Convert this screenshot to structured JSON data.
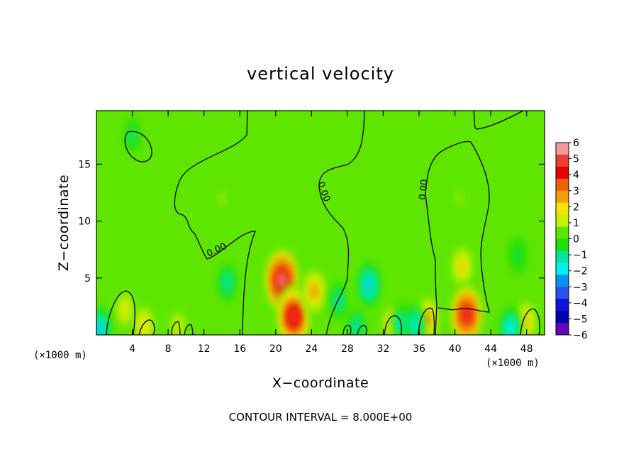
{
  "chart_data": {
    "type": "heatmap",
    "title": "vertical velocity",
    "xlabel": "X−coordinate",
    "ylabel": "Z−coordinate",
    "x_unit": "(×1000 m)",
    "x_ticks": [
      4,
      8,
      12,
      16,
      20,
      24,
      28,
      32,
      36,
      40,
      44,
      48
    ],
    "y_ticks": [
      5,
      10,
      15
    ],
    "xlim": [
      0,
      50
    ],
    "ylim": [
      0,
      19.7
    ],
    "colorbar": {
      "labels": [
        "6",
        "5",
        "4",
        "3",
        "2",
        "1",
        "0",
        "−1",
        "−2",
        "−3",
        "−4",
        "−5",
        "−6"
      ],
      "colors": [
        "#f29a9a",
        "#f03a3a",
        "#e80000",
        "#f06000",
        "#f0a000",
        "#f0e600",
        "#c8f000",
        "#5fe600",
        "#20e000",
        "#00e69a",
        "#00f0f0",
        "#0096f0",
        "#2a50f0",
        "#1010e0",
        "#0000b0",
        "#6a00b8"
      ]
    },
    "contour_labels": [
      "0.00",
      "0.00",
      "0.00"
    ],
    "contour_interval_text": "CONTOUR INTERVAL = 8.000E+00",
    "features": [
      {
        "x": 20.7,
        "z": 4.8,
        "w": 6.3
      },
      {
        "x": 22.0,
        "z": 1.6,
        "w": 5.8
      },
      {
        "x": 24.3,
        "z": 3.8,
        "w": 3.2
      },
      {
        "x": 40.8,
        "z": 6.0,
        "w": 2.5
      },
      {
        "x": 41.3,
        "z": 1.8,
        "w": 5.6
      },
      {
        "x": 36.9,
        "z": 1.4,
        "w": 3.2
      },
      {
        "x": 33.0,
        "z": 1.0,
        "w": 2.3
      },
      {
        "x": 47.9,
        "z": 1.2,
        "w": 2.6
      },
      {
        "x": 3.2,
        "z": 2.2,
        "w": 2.1
      },
      {
        "x": 5.3,
        "z": 0.8,
        "w": 2.4
      },
      {
        "x": 9.1,
        "z": 0.8,
        "w": 1.6
      },
      {
        "x": 14.6,
        "z": 4.6,
        "w": -1.4
      },
      {
        "x": 30.4,
        "z": 4.4,
        "w": -2.6
      },
      {
        "x": 27.0,
        "z": 3.0,
        "w": -1.2
      },
      {
        "x": 34.0,
        "z": 1.0,
        "w": -1.6
      },
      {
        "x": 35.5,
        "z": 0.9,
        "w": -2.0
      },
      {
        "x": 0.4,
        "z": 0.5,
        "w": -2.4
      },
      {
        "x": 46.2,
        "z": 0.6,
        "w": -2.3
      },
      {
        "x": 29.0,
        "z": 0.7,
        "w": -1.2
      },
      {
        "x": 14.0,
        "z": 12.0,
        "w": 1.2
      },
      {
        "x": 40.5,
        "z": 12.0,
        "w": 1.1
      },
      {
        "x": 4.0,
        "z": 17.5,
        "w": -0.8
      },
      {
        "x": 47.0,
        "z": 7.0,
        "w": -1.0
      }
    ]
  }
}
